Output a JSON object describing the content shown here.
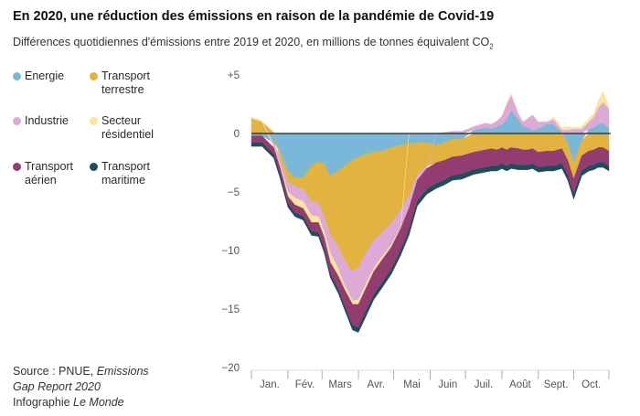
{
  "header": {
    "title": "En 2020, une réduction des émissions en raison de la pandémie de Covid-19",
    "subtitle_main": "Différences quotidiennes d'émissions entre 2019 et 2020, en millions de tonnes équivalent CO",
    "subtitle_sub": "2"
  },
  "legend": [
    {
      "label_1": "Energie",
      "label_2": "",
      "color": "#7ab8d9",
      "icon": "circle-dot"
    },
    {
      "label_1": "Transport",
      "label_2": "terrestre",
      "color": "#e2b33e",
      "icon": "circle-dot"
    },
    {
      "label_1": "Industrie",
      "label_2": "",
      "color": "#dda9d6",
      "icon": "circle-dot"
    },
    {
      "label_1": "Secteur",
      "label_2": "résidentiel",
      "color": "#fbe3a0",
      "icon": "circle-dot"
    },
    {
      "label_1": "Transport",
      "label_2": "aérien",
      "color": "#923c70",
      "icon": "circle-dot"
    },
    {
      "label_1": "Transport",
      "label_2": "maritime",
      "color": "#1d4c5b",
      "icon": "circle-dot"
    }
  ],
  "source": {
    "line1_prefix": "Source : PNUE, ",
    "line1_italic": "Emissions",
    "line2_italic": "Gap Report 2020",
    "line3_prefix": "Infographie ",
    "line3_italic": "Le Monde"
  },
  "chart_data": {
    "type": "area",
    "stacking": "diverging",
    "ylim": [
      -20,
      5
    ],
    "yticks": [
      5,
      0,
      -5,
      -10,
      -15,
      -20
    ],
    "ytick_labels": [
      "+5",
      "0",
      "−5",
      "−10",
      "−15",
      "−20"
    ],
    "months": [
      "Jan.",
      "Fév.",
      "Mars",
      "Avr.",
      "Mai",
      "Juin",
      "Juil.",
      "Août",
      "Sept.",
      "Oct."
    ],
    "x_unit": "day of 2020",
    "x_domain": [
      1,
      305
    ],
    "x": [
      1,
      10,
      20,
      25,
      32,
      38,
      45,
      52,
      58,
      63,
      68,
      75,
      80,
      87,
      92,
      98,
      105,
      112,
      120,
      128,
      135,
      142,
      150,
      158,
      165,
      172,
      180,
      190,
      200,
      205,
      210,
      214,
      218,
      222,
      228,
      232,
      236,
      240,
      245,
      252,
      258,
      265,
      270,
      275,
      282,
      288,
      292,
      296,
      300,
      305
    ],
    "series": [
      {
        "name": "Energie",
        "values": [
          -0.2,
          -0.2,
          -0.8,
          -1.5,
          -3.2,
          -3.8,
          -3.8,
          -2.8,
          -2.4,
          -2.6,
          -3.6,
          -3.2,
          -2.8,
          -2.3,
          -2.0,
          -1.8,
          -1.6,
          -1.5,
          -1.2,
          -1.0,
          -0.9,
          -0.8,
          -0.8,
          -1.0,
          -0.8,
          -0.5,
          -0.5,
          0.3,
          0.5,
          0.4,
          0.6,
          0.8,
          1.2,
          2.0,
          1.2,
          0.6,
          0.5,
          0.3,
          0.4,
          0.8,
          0.8,
          0.1,
          -0.8,
          -2.5,
          -0.6,
          0.4,
          0.5,
          0.8,
          0.9,
          0.5
        ]
      },
      {
        "name": "Transport terrestre",
        "values": [
          1.3,
          1.0,
          0.1,
          -0.5,
          -0.9,
          -0.7,
          -0.9,
          -3.0,
          -3.5,
          -4.5,
          -5.0,
          -6.5,
          -8.0,
          -9.5,
          -9.5,
          -8.5,
          -7.5,
          -7.0,
          -6.5,
          -5.5,
          -4.5,
          -2.8,
          -2.0,
          -1.5,
          -1.5,
          -1.5,
          -1.4,
          -1.6,
          -1.4,
          -1.3,
          -1.4,
          -1.2,
          -1.4,
          -1.2,
          -1.3,
          -1.4,
          -1.4,
          -1.3,
          -1.6,
          -1.5,
          -1.5,
          -1.3,
          -1.5,
          -1.4,
          -1.3,
          -1.5,
          -1.4,
          -1.2,
          -1.2,
          -1.5
        ]
      },
      {
        "name": "Industrie",
        "values": [
          0.0,
          0.0,
          -0.3,
          -0.6,
          -0.9,
          -1.0,
          -1.1,
          -1.2,
          -1.2,
          -1.3,
          -1.6,
          -1.9,
          -2.1,
          -2.5,
          -2.7,
          -2.6,
          -2.4,
          -2.0,
          -1.8,
          -1.5,
          -1.0,
          -0.4,
          -0.2,
          0.0,
          0.1,
          0.2,
          0.2,
          0.3,
          0.4,
          0.4,
          0.5,
          0.7,
          1.3,
          1.3,
          0.5,
          0.4,
          0.8,
          1.3,
          0.6,
          0.2,
          0.4,
          0.2,
          0.3,
          0.4,
          0.4,
          0.6,
          0.9,
          1.4,
          1.8,
          1.6
        ]
      },
      {
        "name": "Secteur résidentiel",
        "values": [
          0.1,
          0.1,
          -0.1,
          -0.2,
          -0.4,
          -0.6,
          -0.6,
          -0.6,
          -0.5,
          -0.5,
          -0.8,
          -0.6,
          -0.4,
          -0.3,
          -0.4,
          -0.4,
          -0.3,
          -0.3,
          -0.2,
          -0.1,
          0.0,
          0.0,
          0.0,
          0.0,
          0.0,
          0.0,
          0.0,
          0.0,
          0.0,
          0.0,
          0.0,
          0.0,
          0.1,
          0.1,
          0.0,
          0.0,
          0.0,
          0.0,
          0.0,
          0.0,
          0.2,
          0.2,
          0.3,
          0.1,
          0.2,
          0.3,
          0.3,
          0.6,
          0.9,
          0.2
        ]
      },
      {
        "name": "Transport aérien",
        "values": [
          -0.6,
          -0.6,
          -0.6,
          -0.6,
          -0.6,
          -0.7,
          -0.7,
          -0.8,
          -0.9,
          -1.0,
          -1.0,
          -1.2,
          -1.4,
          -1.8,
          -2.0,
          -2.0,
          -2.0,
          -2.0,
          -1.9,
          -1.9,
          -1.9,
          -1.8,
          -1.8,
          -1.8,
          -1.7,
          -1.6,
          -1.6,
          -1.5,
          -1.5,
          -1.5,
          -1.4,
          -1.4,
          -1.4,
          -1.4,
          -1.4,
          -1.3,
          -1.3,
          -1.3,
          -1.3,
          -1.3,
          -1.3,
          -1.3,
          -1.3,
          -1.3,
          -1.3,
          -1.3,
          -1.3,
          -1.3,
          -1.3,
          -1.3
        ]
      },
      {
        "name": "Transport maritime",
        "values": [
          -0.3,
          -0.3,
          -0.3,
          -0.3,
          -0.3,
          -0.3,
          -0.3,
          -0.3,
          -0.3,
          -0.3,
          -0.3,
          -0.3,
          -0.3,
          -0.4,
          -0.4,
          -0.4,
          -0.4,
          -0.4,
          -0.4,
          -0.4,
          -0.4,
          -0.4,
          -0.4,
          -0.4,
          -0.4,
          -0.4,
          -0.4,
          -0.4,
          -0.4,
          -0.4,
          -0.4,
          -0.4,
          -0.4,
          -0.4,
          -0.4,
          -0.4,
          -0.4,
          -0.4,
          -0.4,
          -0.4,
          -0.4,
          -0.4,
          -0.4,
          -0.4,
          -0.4,
          -0.4,
          -0.4,
          -0.4,
          -0.4,
          -0.4
        ]
      }
    ],
    "grid": false,
    "zero_line": true,
    "legend_position": "left"
  }
}
